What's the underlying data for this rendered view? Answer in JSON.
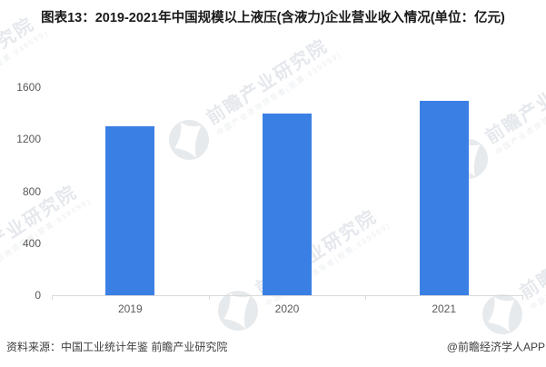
{
  "title": "图表13：2019-2021年中国规模以上液压(含液力)企业营业收入情况(单位：亿元)",
  "chart_data": {
    "type": "bar",
    "title": "2019-2021年中国规模以上液压(含液力)企业营业收入情况",
    "unit": "亿元",
    "categories": [
      "2019",
      "2020",
      "2021"
    ],
    "values": [
      1300,
      1400,
      1495
    ],
    "xlabel": "",
    "ylabel": "",
    "ylim": [
      0,
      1600
    ],
    "yticks": [
      0,
      400,
      800,
      1200,
      1600
    ],
    "grid": false,
    "legend": false,
    "bar_color": "#3a80e4",
    "axis_color": "#d9d9d9",
    "tick_label_color": "#595959"
  },
  "footer": {
    "source": "资料来源：中国工业统计年鉴 前瞻产业研究院",
    "credit": "@前瞻经济学人APP"
  },
  "watermark": {
    "big": "前瞻产业研究院",
    "small": "中国产业咨询领导者(股票:839599)",
    "text_color": "#e5e8ec",
    "subtext_color": "#eaedf0",
    "logo_color": "#e7eaed"
  }
}
